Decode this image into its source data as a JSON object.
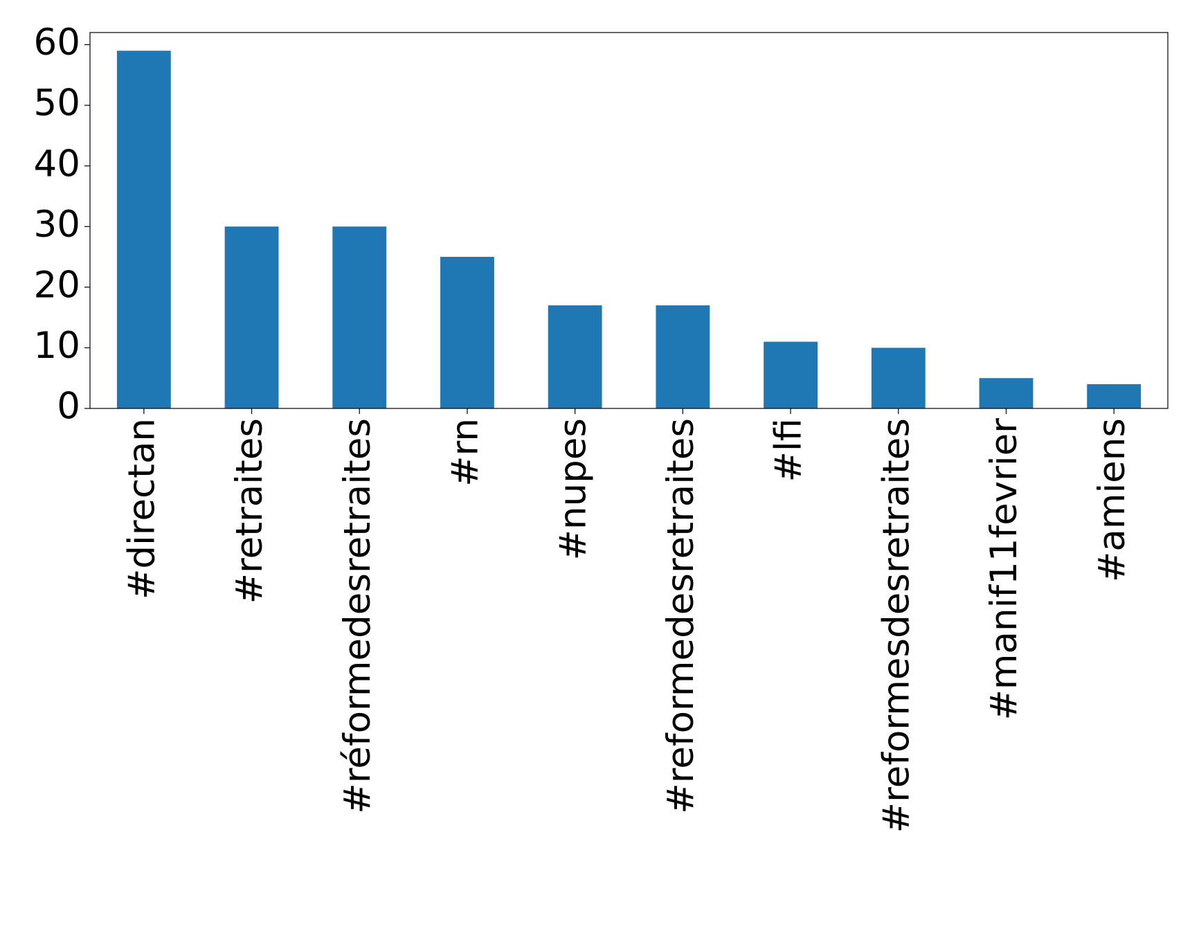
{
  "chart_data": {
    "type": "bar",
    "categories": [
      "#directan",
      "#retraites",
      "#réformedesretraites",
      "#rn",
      "#nupes",
      "#reformedesretraites",
      "#lfi",
      "#reformesdesretraites",
      "#manif11fevrier",
      "#amiens"
    ],
    "values": [
      59,
      30,
      30,
      25,
      17,
      17,
      11,
      10,
      5,
      4
    ],
    "color": "#1f77b4",
    "ylim": [
      0,
      62
    ],
    "yticks": [
      0,
      10,
      20,
      30,
      40,
      50,
      60
    ],
    "grid": false
  }
}
